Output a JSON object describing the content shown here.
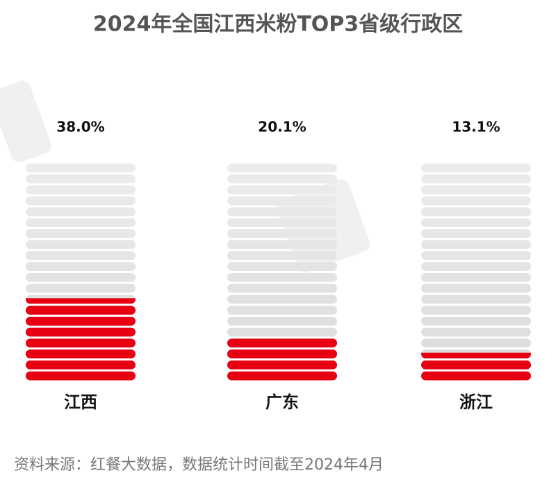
{
  "chart_data": {
    "type": "pictorial-bar",
    "title": "2024年全国江西米粉TOP3省级行政区",
    "categories": [
      "江西",
      "广东",
      "浙江"
    ],
    "values": [
      38.0,
      20.1,
      13.1
    ],
    "value_labels": [
      "38.0%",
      "20.1%",
      "13.1%"
    ],
    "color": "#e60012",
    "ylim": [
      0,
      100
    ],
    "source": "资料来源：红餐大数据，数据统计时间截至2024年4月"
  }
}
